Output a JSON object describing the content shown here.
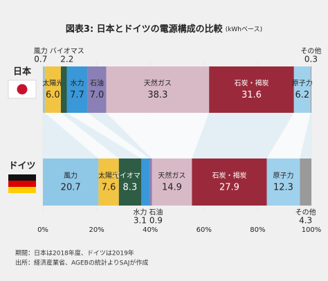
{
  "chart_data": {
    "type": "stacked-bar-comparison",
    "title": "図表3: 日本とドイツの電源構成の比較",
    "subtitle": "(kWhベース)",
    "categories": [
      "日本",
      "ドイツ"
    ],
    "series": [
      {
        "name": "風力",
        "color": "#8fc7e7",
        "values": [
          0.7,
          20.7
        ],
        "value_labels": [
          "0.7",
          "20.7"
        ]
      },
      {
        "name": "太陽光",
        "color": "#f2c443",
        "values": [
          6.0,
          7.6
        ],
        "value_labels": [
          "6.0",
          "7.6"
        ]
      },
      {
        "name": "バイオマス",
        "color": "#2e5c45",
        "values": [
          2.2,
          8.3
        ],
        "value_labels": [
          "2.2",
          "8.3"
        ]
      },
      {
        "name": "水力",
        "color": "#3a98d8",
        "values": [
          7.7,
          3.1
        ],
        "value_labels": [
          "7.7",
          "3.1"
        ]
      },
      {
        "name": "石油",
        "color": "#8a80b6",
        "values": [
          7.0,
          0.9
        ],
        "value_labels": [
          "7.0",
          "0.9"
        ]
      },
      {
        "name": "天然ガス",
        "color": "#d8bac7",
        "values": [
          38.3,
          14.9
        ],
        "value_labels": [
          "38.3",
          "14.9"
        ]
      },
      {
        "name": "石炭・褐炭",
        "color": "#9a2a3b",
        "values": [
          31.6,
          27.9
        ],
        "value_labels": [
          "31.6",
          "27.9"
        ]
      },
      {
        "name": "原子力",
        "color": "#a0d1ec",
        "values": [
          6.2,
          12.3
        ],
        "value_labels": [
          "6.2",
          "12.3"
        ]
      },
      {
        "name": "その他",
        "color": "#9a9a9a",
        "values": [
          0.3,
          4.3
        ],
        "value_labels": [
          "0.3",
          "4.3"
        ]
      }
    ],
    "xlim": [
      0,
      100
    ],
    "xticks": [
      {
        "value": 0,
        "label": "0%"
      },
      {
        "value": 20,
        "label": "20%"
      },
      {
        "value": 40,
        "label": "40%"
      },
      {
        "value": 60,
        "label": "60%"
      },
      {
        "value": 80,
        "label": "80%"
      },
      {
        "value": 100,
        "label": "100%"
      }
    ],
    "notes": [
      "期間：日本は2018年度、ドイツは2019年",
      "出所：経済産業省、AGEBの統計よりSAJが作成"
    ]
  }
}
